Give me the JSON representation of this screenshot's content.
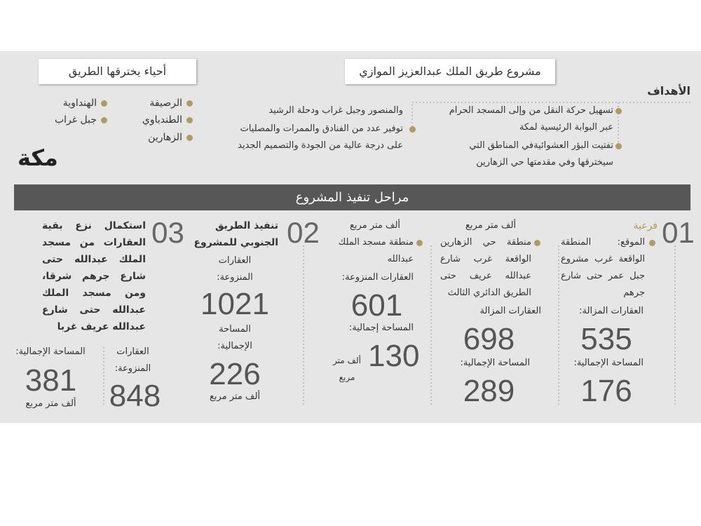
{
  "header": {
    "title": "مشروع طريق الملك عبدالعزيز الموازي",
    "neighborhoods_title": "أحياء يخترقها الطريق",
    "logo": "مكة"
  },
  "goals": {
    "heading": "الأهداف",
    "items": [
      [
        "تسهيل حركة النقل من وإلى المسجد الحرام عبر البوابة الرئيسية لمكة"
      ],
      [
        "تفتيت البؤر العشوائيةفي المناطق التي سيخترقها وفي مقدمتها حي الزهارين",
        "والمنصور وجبل غراب ودحلة الرشيد"
      ],
      [
        "توفير عدد من الفنادق والممرات والمصليات على درجة عالية من الجودة والتصميم الجديد"
      ]
    ]
  },
  "neighborhoods": [
    "الرصيفة",
    "الطندباوي",
    "الزهارين",
    "الهنداوية",
    "جبل غراب"
  ],
  "phases_title": "مراحل تنفيذ المشروع",
  "phases": [
    {
      "number": "01",
      "label": "فرعية",
      "zones": [
        {
          "location": "الموقع: المنطقة الواقعة غرب مشروع جبل عمر حتى شارع جرهم",
          "count_label": "العقارات المزالة:",
          "count": 535,
          "area_label": "المساحة الإجمالية:",
          "area": 176,
          "area_unit": "ألف متر مربع"
        },
        {
          "location": "منطقة حي الزهارين الواقعة غرب شارع عبدالله عريف حتى الطريق الدائري الثالث",
          "count_label": "العقارات المزالة",
          "count": 698,
          "area_label": "المساحة الإجمالية:",
          "area": 289,
          "area_unit": "ألف متر مربع"
        },
        {
          "location": "منطقة مسجد الملك عبدالله",
          "count_label": "العقارات المنزوعة:",
          "count": 601,
          "area_label": "المساحة إجمالية:",
          "area": 130,
          "area_unit": "ألف متر مربع"
        }
      ]
    },
    {
      "number": "02",
      "label": "تنفيذ الطريق الجنوبي للمشروع",
      "count_label": "العقارات المنزوعة:",
      "count": 1021,
      "area_label": "المساحة الإجمالية:",
      "area": 226,
      "area_unit": "ألف متر مربع"
    },
    {
      "number": "03",
      "label": "استكمال نزع بقية العقارات من مسجد الملك عبدالله حتى شارع جرهم شرقا، ومن مسجد الملك عبدالله حتى شارع عبدالله عريف غربا",
      "count_label": "العقارات المنزوعة:",
      "count": 848,
      "area_label": "المساحة الإجمالية:",
      "area": 381,
      "area_unit": "ألف متر مربع"
    }
  ]
}
